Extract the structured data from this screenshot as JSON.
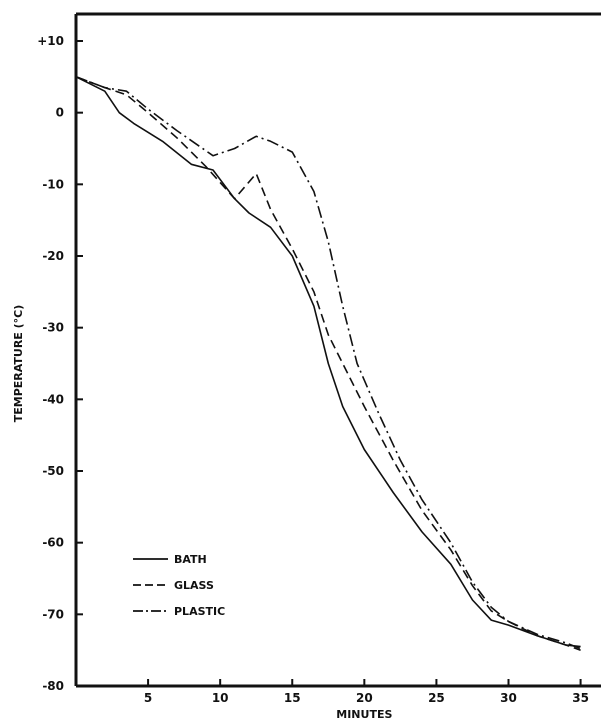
{
  "chart_data": {
    "type": "line",
    "xlabel": "MINUTES",
    "ylabel": "TEMPERATURE (°C)",
    "xlim": [
      0,
      36
    ],
    "ylim": [
      -80,
      12
    ],
    "x_ticks": [
      {
        "value": 5,
        "label": "5"
      },
      {
        "value": 10,
        "label": "10"
      },
      {
        "value": 15,
        "label": "15"
      },
      {
        "value": 20,
        "label": "20"
      },
      {
        "value": 25,
        "label": "25"
      },
      {
        "value": 30,
        "label": "30"
      },
      {
        "value": 35,
        "label": "35"
      }
    ],
    "y_ticks": [
      {
        "value": 10,
        "label": "+10"
      },
      {
        "value": 0,
        "label": "0"
      },
      {
        "value": -10,
        "label": "-10"
      },
      {
        "value": -20,
        "label": "-20"
      },
      {
        "value": -30,
        "label": "-30"
      },
      {
        "value": -40,
        "label": "-40"
      },
      {
        "value": -50,
        "label": "-50"
      },
      {
        "value": -60,
        "label": "-60"
      },
      {
        "value": -70,
        "label": "-70"
      },
      {
        "value": -80,
        "label": "-80"
      }
    ],
    "grid": false,
    "legend_position": "bottom-left",
    "series": [
      {
        "name": "BATH",
        "dash": "solid",
        "color": "#111111",
        "points": [
          [
            0,
            5
          ],
          [
            2,
            3
          ],
          [
            3,
            0
          ],
          [
            4,
            -1.5
          ],
          [
            6,
            -4
          ],
          [
            8,
            -7.2
          ],
          [
            9.5,
            -8
          ],
          [
            11,
            -12
          ],
          [
            12,
            -14
          ],
          [
            13.5,
            -16
          ],
          [
            15,
            -20
          ],
          [
            16.5,
            -27
          ],
          [
            17.5,
            -35
          ],
          [
            18.5,
            -41
          ],
          [
            20,
            -47
          ],
          [
            22,
            -53
          ],
          [
            24,
            -58.5
          ],
          [
            26,
            -63
          ],
          [
            27.5,
            -68
          ],
          [
            28.8,
            -70.8
          ],
          [
            30,
            -71.5
          ],
          [
            32,
            -73
          ],
          [
            34,
            -74.3
          ],
          [
            35,
            -74.5
          ]
        ]
      },
      {
        "name": "GLASS",
        "dash": "dashed",
        "color": "#111111",
        "points": [
          [
            0,
            5
          ],
          [
            2,
            3.5
          ],
          [
            3.5,
            2.5
          ],
          [
            5,
            0
          ],
          [
            7,
            -3.5
          ],
          [
            9,
            -7.5
          ],
          [
            11,
            -12
          ],
          [
            12.5,
            -8.5
          ],
          [
            13.5,
            -13.5
          ],
          [
            15,
            -19
          ],
          [
            16.5,
            -25
          ],
          [
            17.5,
            -31
          ],
          [
            18.5,
            -35
          ],
          [
            20,
            -41
          ],
          [
            22,
            -48.5
          ],
          [
            24,
            -55.5
          ],
          [
            26,
            -61
          ],
          [
            27.5,
            -66
          ],
          [
            28.8,
            -69.5
          ],
          [
            30,
            -71
          ],
          [
            32,
            -73
          ],
          [
            34,
            -74.3
          ],
          [
            35,
            -75
          ]
        ]
      },
      {
        "name": "PLASTIC",
        "dash": "dashdot",
        "color": "#111111",
        "points": [
          [
            0,
            5
          ],
          [
            2,
            3.5
          ],
          [
            3.5,
            3
          ],
          [
            5,
            0.5
          ],
          [
            7,
            -2.5
          ],
          [
            9.5,
            -6
          ],
          [
            11,
            -5
          ],
          [
            12.5,
            -3.3
          ],
          [
            13.5,
            -4
          ],
          [
            15,
            -5.5
          ],
          [
            16.5,
            -11
          ],
          [
            17.5,
            -18
          ],
          [
            18.5,
            -27
          ],
          [
            19.5,
            -35
          ],
          [
            21,
            -42
          ],
          [
            22.5,
            -48.5
          ],
          [
            24,
            -54
          ],
          [
            26,
            -60
          ],
          [
            27.5,
            -65.5
          ],
          [
            28.8,
            -69
          ],
          [
            30,
            -71
          ],
          [
            32,
            -72.8
          ],
          [
            34,
            -74
          ],
          [
            35,
            -74.8
          ]
        ]
      }
    ]
  }
}
